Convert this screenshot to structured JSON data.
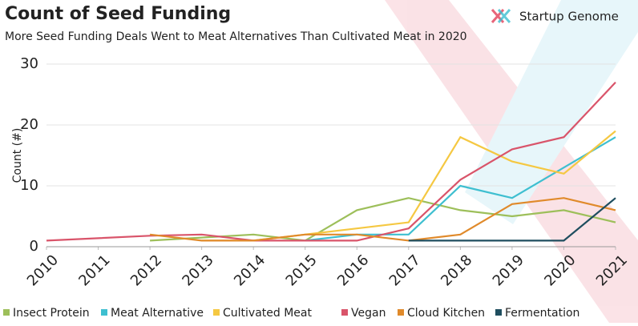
{
  "chart_data": {
    "type": "line",
    "title": "Count of Seed Funding",
    "subtitle": "More Seed Funding Deals Went to Meat Alternatives Than Cultivated Meat in 2020",
    "brand": "Startup Genome",
    "y_label": "Count (#)",
    "x": [
      2010,
      2011,
      2012,
      2013,
      2014,
      2015,
      2016,
      2017,
      2018,
      2019,
      2020,
      2021
    ],
    "xlim": [
      2010,
      2021
    ],
    "xticks": [
      2010,
      2011,
      2012,
      2013,
      2014,
      2015,
      2016,
      2017,
      2018,
      2019,
      2020,
      2021
    ],
    "ylim": [
      0,
      30
    ],
    "yticks": [
      0,
      10,
      20,
      30
    ],
    "grid": true,
    "legend": "bottom",
    "series": [
      {
        "name": "Insect Protein",
        "color": "#9dbf5a",
        "values": [
          null,
          null,
          1,
          1.5,
          2,
          1,
          6,
          8,
          6,
          5,
          6,
          4
        ]
      },
      {
        "name": "Meat Alternative",
        "color": "#3ebfd0",
        "values": [
          null,
          null,
          null,
          null,
          null,
          1,
          2,
          2,
          10,
          8,
          13,
          18
        ]
      },
      {
        "name": "Cultivated Meat",
        "color": "#f5c842",
        "values": [
          null,
          null,
          null,
          1,
          1,
          2,
          3,
          4,
          18,
          14,
          12,
          19
        ]
      },
      {
        "name": "Vegan",
        "color": "#d9546a",
        "values": [
          1,
          1.4,
          1.8,
          2,
          1,
          1,
          1,
          3,
          11,
          16,
          18,
          27
        ]
      },
      {
        "name": "Cloud Kitchen",
        "color": "#e08a2b",
        "values": [
          null,
          null,
          2,
          1,
          1,
          2,
          2,
          1,
          2,
          7,
          8,
          6
        ]
      },
      {
        "name": "Fermentation",
        "color": "#1f4e5f",
        "values": [
          null,
          null,
          null,
          null,
          null,
          null,
          null,
          1,
          1,
          1,
          1,
          8
        ]
      }
    ]
  }
}
